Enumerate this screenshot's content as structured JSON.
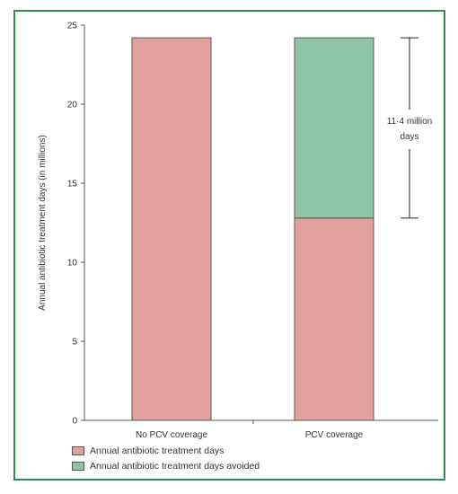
{
  "chart_data": {
    "type": "bar",
    "stacked": true,
    "categories": [
      "No PCV coverage",
      "PCV coverage"
    ],
    "series": [
      {
        "name": "Annual antibiotic treatment days",
        "values": [
          24.2,
          12.8
        ],
        "color": "#e1a19e"
      },
      {
        "name": "Annual antibiotic treatment days avoided",
        "values": [
          0,
          11.4
        ],
        "color": "#8fc4a6"
      }
    ],
    "ylabel": "Annual antibiotic treatment days (in millions)",
    "ylim": [
      0,
      25
    ],
    "yticks": [
      0,
      5,
      10,
      15,
      20,
      25
    ],
    "annotation": {
      "line1": "11·4 million",
      "line2": "days",
      "from": 12.8,
      "to": 24.2
    },
    "legend_position": "bottom-left",
    "grid": false
  },
  "colors": {
    "frame": "#2e8b57",
    "bar_stroke": "#555555",
    "axis": "#555555"
  }
}
